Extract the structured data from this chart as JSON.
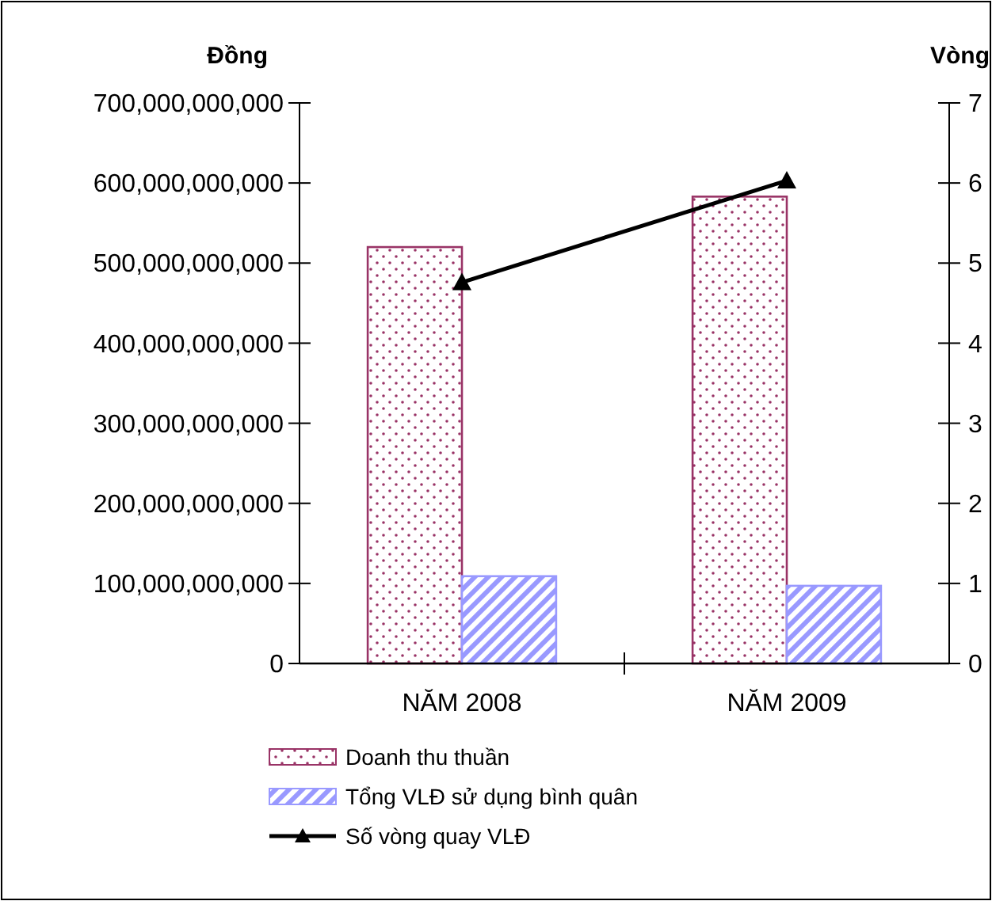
{
  "chart_data": {
    "type": "bar",
    "ylabel": "Đồng",
    "y2label": "Vòng",
    "categories": [
      "NĂM 2008",
      "NĂM 2009"
    ],
    "series": [
      {
        "name": "Doanh thu thuần",
        "color": "#993366",
        "values": [
          520000000000,
          583000000000
        ]
      },
      {
        "name": "Tổng VLĐ sử dụng bình quân",
        "color": "#9999ff",
        "values": [
          109000000000,
          97000000000
        ]
      },
      {
        "name": "Số vòng quay VLĐ",
        "type": "line",
        "axis": "y2",
        "color": "#000000",
        "marker": "triangle",
        "values": [
          4.76,
          6.03
        ]
      }
    ],
    "ylim": [
      0,
      700000000000
    ],
    "yticks": [
      {
        "value": 0,
        "label": "0"
      },
      {
        "value": 100000000000,
        "label": "100,000,000,000"
      },
      {
        "value": 200000000000,
        "label": "200,000,000,000"
      },
      {
        "value": 300000000000,
        "label": "300,000,000,000"
      },
      {
        "value": 400000000000,
        "label": "400,000,000,000"
      },
      {
        "value": 500000000000,
        "label": "500,000,000,000"
      },
      {
        "value": 600000000000,
        "label": "600,000,000,000"
      },
      {
        "value": 700000000000,
        "label": "700,000,000,000"
      }
    ],
    "y2lim": [
      0,
      7
    ],
    "y2ticks": [
      0,
      1,
      2,
      3,
      4,
      5,
      6,
      7
    ],
    "grid": false,
    "legend": "bottom"
  }
}
